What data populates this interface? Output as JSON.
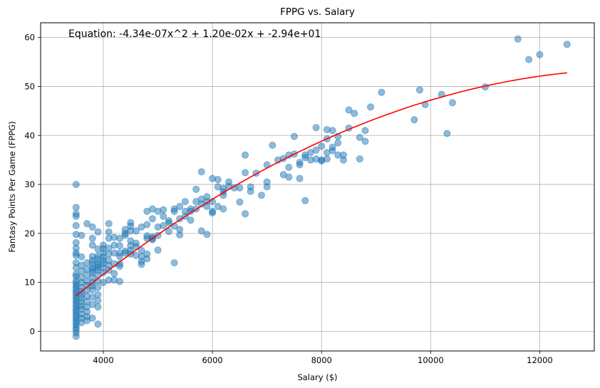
{
  "chart_data": {
    "type": "scatter",
    "title": "FPPG vs. Salary",
    "xlabel": "Salary ($)",
    "ylabel": "Fantasy Points Per Game (FPPG)",
    "xlim": [
      2850,
      13000
    ],
    "ylim": [
      -4,
      63
    ],
    "xticks": [
      4000,
      6000,
      8000,
      10000,
      12000
    ],
    "yticks": [
      0,
      10,
      20,
      30,
      40,
      50,
      60
    ],
    "grid": true,
    "annotation": "Equation: -4.34e-07x^2 + 1.20e-02x + -2.94e+01",
    "fit": {
      "type": "quadratic",
      "a": -4.34e-07,
      "b": 0.012,
      "c": -29.4,
      "x_range": [
        3500,
        12500
      ],
      "color": "#ff0000"
    },
    "point_color": "#1f77b4",
    "series": [
      {
        "points": [
          [
            3500,
            30.0
          ],
          [
            3500,
            25.3
          ],
          [
            3500,
            24.0
          ],
          [
            3500,
            23.5
          ],
          [
            3500,
            21.6
          ],
          [
            3500,
            19.8
          ],
          [
            3500,
            18.1
          ],
          [
            3500,
            17.0
          ],
          [
            3500,
            16.0
          ],
          [
            3500,
            15.5
          ],
          [
            3500,
            14.0
          ],
          [
            3500,
            13.0
          ],
          [
            3500,
            11.7
          ],
          [
            3500,
            11.2
          ],
          [
            3500,
            10.3
          ],
          [
            3500,
            9.8
          ],
          [
            3500,
            9.3
          ],
          [
            3500,
            8.8
          ],
          [
            3500,
            8.3
          ],
          [
            3500,
            7.8
          ],
          [
            3500,
            7.3
          ],
          [
            3500,
            6.8
          ],
          [
            3500,
            6.3
          ],
          [
            3500,
            5.8
          ],
          [
            3500,
            5.3
          ],
          [
            3500,
            4.8
          ],
          [
            3500,
            4.3
          ],
          [
            3500,
            3.8
          ],
          [
            3500,
            3.3
          ],
          [
            3500,
            2.8
          ],
          [
            3500,
            2.3
          ],
          [
            3500,
            1.8
          ],
          [
            3500,
            1.3
          ],
          [
            3500,
            0.8
          ],
          [
            3500,
            0.3
          ],
          [
            3500,
            -0.3
          ],
          [
            3500,
            -1.0
          ],
          [
            3600,
            19.6
          ],
          [
            3600,
            15.2
          ],
          [
            3600,
            13.5
          ],
          [
            3600,
            12.3
          ],
          [
            3600,
            11.0
          ],
          [
            3600,
            10.0
          ],
          [
            3600,
            9.0
          ],
          [
            3600,
            8.2
          ],
          [
            3600,
            7.5
          ],
          [
            3600,
            6.8
          ],
          [
            3600,
            6.0
          ],
          [
            3600,
            5.2
          ],
          [
            3600,
            4.5
          ],
          [
            3600,
            3.5
          ],
          [
            3600,
            2.7
          ],
          [
            3600,
            1.8
          ],
          [
            3700,
            22.0
          ],
          [
            3700,
            14.0
          ],
          [
            3700,
            12.7
          ],
          [
            3700,
            11.5
          ],
          [
            3700,
            10.2
          ],
          [
            3700,
            9.4
          ],
          [
            3700,
            8.4
          ],
          [
            3700,
            7.2
          ],
          [
            3700,
            6.1
          ],
          [
            3700,
            5.0
          ],
          [
            3700,
            4.0
          ],
          [
            3700,
            3.0
          ],
          [
            3700,
            2.2
          ],
          [
            3800,
            21.3
          ],
          [
            3800,
            19.0
          ],
          [
            3800,
            17.6
          ],
          [
            3800,
            15.3
          ],
          [
            3800,
            14.5
          ],
          [
            3800,
            13.8
          ],
          [
            3800,
            13.0
          ],
          [
            3800,
            12.5
          ],
          [
            3800,
            12.0
          ],
          [
            3800,
            11.0
          ],
          [
            3800,
            10.0
          ],
          [
            3800,
            9.3
          ],
          [
            3800,
            8.5
          ],
          [
            3800,
            7.0
          ],
          [
            3800,
            5.5
          ],
          [
            3800,
            2.7
          ],
          [
            3900,
            20.3
          ],
          [
            3900,
            16.8
          ],
          [
            3900,
            15.4
          ],
          [
            3900,
            14.8
          ],
          [
            3900,
            14.0
          ],
          [
            3900,
            13.5
          ],
          [
            3900,
            13.0
          ],
          [
            3900,
            12.5
          ],
          [
            3900,
            11.5
          ],
          [
            3900,
            10.3
          ],
          [
            3900,
            9.0
          ],
          [
            3900,
            7.5
          ],
          [
            3900,
            6.3
          ],
          [
            3900,
            5.0
          ],
          [
            3900,
            1.5
          ],
          [
            4000,
            17.6
          ],
          [
            4000,
            16.9
          ],
          [
            4000,
            16.0
          ],
          [
            4000,
            15.2
          ],
          [
            4000,
            14.5
          ],
          [
            4000,
            13.8
          ],
          [
            4000,
            13.0
          ],
          [
            4000,
            12.0
          ],
          [
            4000,
            10.0
          ],
          [
            4100,
            22.0
          ],
          [
            4100,
            20.3
          ],
          [
            4100,
            19.0
          ],
          [
            4100,
            17.0
          ],
          [
            4100,
            15.8
          ],
          [
            4100,
            14.5
          ],
          [
            4100,
            13.5
          ],
          [
            4100,
            12.5
          ],
          [
            4100,
            10.5
          ],
          [
            4200,
            19.2
          ],
          [
            4200,
            17.6
          ],
          [
            4200,
            16.0
          ],
          [
            4200,
            13.8
          ],
          [
            4200,
            11.8
          ],
          [
            4200,
            10.5
          ],
          [
            4300,
            19.0
          ],
          [
            4300,
            17.5
          ],
          [
            4300,
            16.0
          ],
          [
            4300,
            15.3
          ],
          [
            4300,
            13.8
          ],
          [
            4300,
            13.3
          ],
          [
            4300,
            10.2
          ],
          [
            4400,
            20.8
          ],
          [
            4400,
            20.0
          ],
          [
            4400,
            19.6
          ],
          [
            4400,
            16.4
          ],
          [
            4400,
            16.0
          ],
          [
            4500,
            22.2
          ],
          [
            4500,
            21.5
          ],
          [
            4500,
            20.5
          ],
          [
            4500,
            18.5
          ],
          [
            4500,
            17.5
          ],
          [
            4500,
            16.5
          ],
          [
            4500,
            15.8
          ],
          [
            4600,
            20.5
          ],
          [
            4600,
            18.0
          ],
          [
            4600,
            17.3
          ],
          [
            4600,
            15.5
          ],
          [
            4700,
            21.3
          ],
          [
            4700,
            16.5
          ],
          [
            4700,
            15.3
          ],
          [
            4700,
            14.3
          ],
          [
            4700,
            13.7
          ],
          [
            4800,
            24.5
          ],
          [
            4800,
            21.8
          ],
          [
            4800,
            19.5
          ],
          [
            4800,
            19.0
          ],
          [
            4800,
            15.8
          ],
          [
            4800,
            14.8
          ],
          [
            4900,
            25.0
          ],
          [
            4900,
            23.0
          ],
          [
            4900,
            19.3
          ],
          [
            4900,
            19.0
          ],
          [
            4900,
            18.7
          ],
          [
            5000,
            24.5
          ],
          [
            5000,
            21.3
          ],
          [
            5000,
            19.6
          ],
          [
            5000,
            16.6
          ],
          [
            5100,
            24.8
          ],
          [
            5100,
            23.5
          ],
          [
            5100,
            21.6
          ],
          [
            5200,
            22.6
          ],
          [
            5200,
            22.2
          ],
          [
            5200,
            20.4
          ],
          [
            5300,
            25.0
          ],
          [
            5300,
            24.5
          ],
          [
            5300,
            21.5
          ],
          [
            5300,
            14.0
          ],
          [
            5400,
            25.5
          ],
          [
            5400,
            23.0
          ],
          [
            5400,
            20.8
          ],
          [
            5400,
            19.7
          ],
          [
            5500,
            26.5
          ],
          [
            5500,
            24.5
          ],
          [
            5500,
            23.5
          ],
          [
            5600,
            25.0
          ],
          [
            5600,
            24.5
          ],
          [
            5600,
            22.7
          ],
          [
            5700,
            29.0
          ],
          [
            5700,
            26.5
          ],
          [
            5700,
            25.0
          ],
          [
            5800,
            32.6
          ],
          [
            5800,
            27.0
          ],
          [
            5800,
            26.0
          ],
          [
            5800,
            20.5
          ],
          [
            5900,
            27.5
          ],
          [
            5900,
            26.5
          ],
          [
            5900,
            25.5
          ],
          [
            5900,
            19.8
          ],
          [
            6000,
            31.2
          ],
          [
            6000,
            26.5
          ],
          [
            6000,
            24.5
          ],
          [
            6000,
            24.2
          ],
          [
            6100,
            31.0
          ],
          [
            6100,
            29.5
          ],
          [
            6100,
            25.5
          ],
          [
            6200,
            29.2
          ],
          [
            6200,
            28.5
          ],
          [
            6200,
            27.8
          ],
          [
            6200,
            25.0
          ],
          [
            6300,
            30.5
          ],
          [
            6300,
            29.6
          ],
          [
            6400,
            29.3
          ],
          [
            6500,
            29.3
          ],
          [
            6500,
            26.4
          ],
          [
            6600,
            36.0
          ],
          [
            6600,
            32.4
          ],
          [
            6600,
            24.0
          ],
          [
            6700,
            29.5
          ],
          [
            6700,
            28.6
          ],
          [
            6800,
            32.3
          ],
          [
            6900,
            27.8
          ],
          [
            7000,
            34.0
          ],
          [
            7000,
            30.5
          ],
          [
            7000,
            29.5
          ],
          [
            7100,
            38.0
          ],
          [
            7200,
            35.0
          ],
          [
            7300,
            35.3
          ],
          [
            7300,
            32.0
          ],
          [
            7400,
            36.0
          ],
          [
            7400,
            33.5
          ],
          [
            7400,
            31.5
          ],
          [
            7500,
            39.8
          ],
          [
            7500,
            36.2
          ],
          [
            7600,
            34.5
          ],
          [
            7600,
            34.0
          ],
          [
            7600,
            31.2
          ],
          [
            7700,
            36.0
          ],
          [
            7700,
            35.5
          ],
          [
            7700,
            26.7
          ],
          [
            7800,
            36.5
          ],
          [
            7800,
            35.0
          ],
          [
            7900,
            41.6
          ],
          [
            7900,
            37.0
          ],
          [
            7900,
            35.2
          ],
          [
            8000,
            37.8
          ],
          [
            8000,
            35.0
          ],
          [
            8000,
            34.8
          ],
          [
            8100,
            41.2
          ],
          [
            8100,
            39.3
          ],
          [
            8100,
            36.5
          ],
          [
            8100,
            35.2
          ],
          [
            8200,
            41.0
          ],
          [
            8200,
            37.6
          ],
          [
            8200,
            36.9
          ],
          [
            8300,
            39.8
          ],
          [
            8300,
            38.5
          ],
          [
            8300,
            36.0
          ],
          [
            8400,
            36.0
          ],
          [
            8400,
            35.0
          ],
          [
            8500,
            45.2
          ],
          [
            8500,
            41.5
          ],
          [
            8600,
            44.5
          ],
          [
            8700,
            39.6
          ],
          [
            8700,
            35.2
          ],
          [
            8800,
            41.0
          ],
          [
            8800,
            38.8
          ],
          [
            8900,
            45.8
          ],
          [
            9100,
            48.8
          ],
          [
            9700,
            43.2
          ],
          [
            9800,
            49.3
          ],
          [
            9900,
            46.3
          ],
          [
            10200,
            48.4
          ],
          [
            10300,
            40.4
          ],
          [
            10400,
            46.7
          ],
          [
            11000,
            49.9
          ],
          [
            11600,
            59.7
          ],
          [
            11800,
            55.5
          ],
          [
            12000,
            56.5
          ],
          [
            12500,
            58.6
          ]
        ]
      }
    ]
  }
}
